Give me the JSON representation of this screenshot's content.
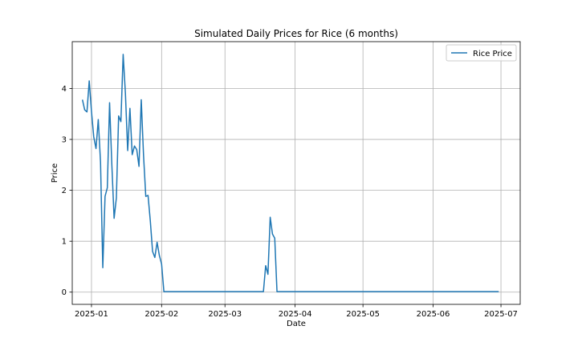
{
  "chart_data": {
    "type": "line",
    "title": "Simulated Daily Prices for Rice (6 months)",
    "xlabel": "Date",
    "ylabel": "Price",
    "x_tick_labels": [
      "2025-01",
      "2025-02",
      "2025-03",
      "2025-04",
      "2025-05",
      "2025-06",
      "2025-07"
    ],
    "x_tick_days": [
      4,
      35,
      63,
      94,
      124,
      155,
      185
    ],
    "x_range_days": [
      -4.5,
      193.5
    ],
    "y_ticks": [
      0,
      1,
      2,
      3,
      4
    ],
    "y_tick_labels": [
      "0",
      "1",
      "2",
      "3",
      "4"
    ],
    "ylim": [
      -0.24,
      4.92
    ],
    "grid": true,
    "legend": {
      "position": "top-right",
      "entries": [
        "Rice Price"
      ]
    },
    "colors": {
      "series": "#1f77b4",
      "grid": "#b0b0b0",
      "axes": "#000000"
    },
    "series": [
      {
        "name": "Rice Price",
        "start_date": "2024-12-28",
        "points": [
          [
            0,
            3.78
          ],
          [
            1,
            3.58
          ],
          [
            2,
            3.54
          ],
          [
            3,
            4.15
          ],
          [
            4,
            3.55
          ],
          [
            5,
            3.05
          ],
          [
            6,
            2.82
          ],
          [
            7,
            3.39
          ],
          [
            8,
            2.55
          ],
          [
            9,
            0.48
          ],
          [
            10,
            1.88
          ],
          [
            11,
            2.05
          ],
          [
            12,
            3.72
          ],
          [
            13,
            2.5
          ],
          [
            14,
            1.45
          ],
          [
            15,
            1.85
          ],
          [
            16,
            3.46
          ],
          [
            17,
            3.35
          ],
          [
            18,
            4.67
          ],
          [
            19,
            3.9
          ],
          [
            20,
            2.78
          ],
          [
            21,
            3.61
          ],
          [
            22,
            2.7
          ],
          [
            23,
            2.87
          ],
          [
            24,
            2.8
          ],
          [
            25,
            2.47
          ],
          [
            26,
            3.78
          ],
          [
            27,
            2.7
          ],
          [
            28,
            1.88
          ],
          [
            29,
            1.9
          ],
          [
            30,
            1.4
          ],
          [
            31,
            0.8
          ],
          [
            32,
            0.68
          ],
          [
            33,
            0.98
          ],
          [
            34,
            0.72
          ],
          [
            35,
            0.55
          ],
          [
            36,
            0.01
          ],
          [
            37,
            0.01
          ],
          [
            80,
            0.01
          ],
          [
            81,
            0.52
          ],
          [
            82,
            0.35
          ],
          [
            83,
            1.47
          ],
          [
            84,
            1.14
          ],
          [
            85,
            1.06
          ],
          [
            86,
            0.01
          ],
          [
            87,
            0.01
          ],
          [
            100,
            0.01
          ],
          [
            120,
            0.01
          ],
          [
            140,
            0.01
          ],
          [
            160,
            0.01
          ],
          [
            180,
            0.01
          ],
          [
            184,
            0.01
          ]
        ]
      }
    ]
  }
}
